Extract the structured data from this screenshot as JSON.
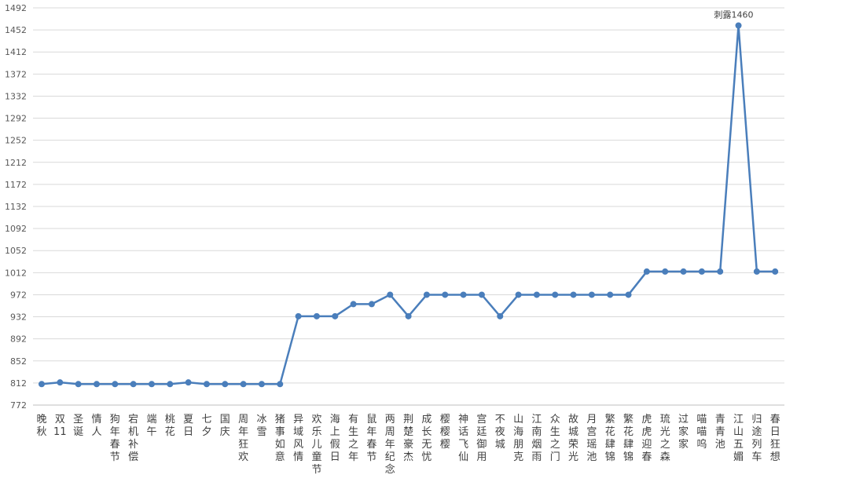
{
  "chart_data": {
    "type": "line",
    "title": "",
    "xlabel": "",
    "ylabel": "",
    "ylim": [
      772,
      1492
    ],
    "yticks": [
      772,
      812,
      852,
      892,
      932,
      972,
      1012,
      1052,
      1092,
      1132,
      1172,
      1212,
      1252,
      1292,
      1332,
      1372,
      1412,
      1452,
      1492
    ],
    "grid": true,
    "legend": "none",
    "color": "#4a7ebb",
    "categories": [
      "晚秋",
      "双11",
      "圣诞",
      "情人",
      "狗年春节",
      "宕机补偿",
      "端午",
      "桃花",
      "夏日",
      "七夕",
      "国庆",
      "周年狂欢",
      "冰雪",
      "猪事如意",
      "异域风情",
      "欢乐儿童节",
      "海上假日",
      "有生之年",
      "鼠年春节",
      "两周年纪念",
      "荆楚豪杰",
      "成长无忧",
      "樱樱樱",
      "神话飞仙",
      "宫廷御用",
      "不夜城",
      "山海朋克",
      "江南烟雨",
      "众生之门",
      "故城荣光",
      "月宫瑶池",
      "繁花肆锦",
      "繁花肆锦",
      "虎虎迎春",
      "琉光之森",
      "过家家",
      "喵喵呜",
      "青青池",
      "江山五媚",
      "归途列车",
      "春日狂想"
    ],
    "values": [
      810,
      813,
      810,
      810,
      810,
      810,
      810,
      810,
      813,
      810,
      810,
      810,
      810,
      810,
      933,
      933,
      933,
      955,
      955,
      972,
      933,
      972,
      972,
      972,
      972,
      933,
      972,
      972,
      972,
      972,
      972,
      972,
      972,
      1014,
      1014,
      1014,
      1014,
      1014,
      1460,
      1014,
      1014
    ],
    "annotations": [
      {
        "index": 38,
        "text": "刺露1460"
      }
    ]
  }
}
